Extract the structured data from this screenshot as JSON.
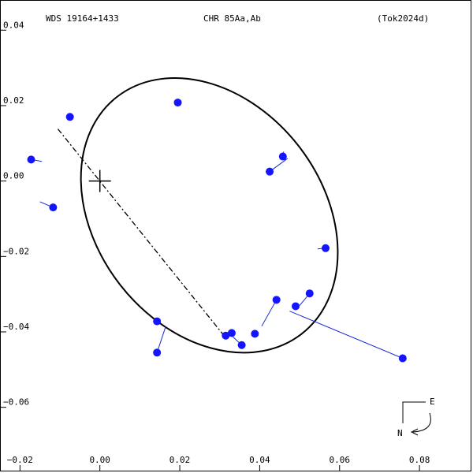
{
  "header": {
    "left": "WDS 19164+1433",
    "center": "CHR  85Aa,Ab",
    "right": "(Tok2024d)"
  },
  "orientation": {
    "east_label": "E",
    "north_label": "N"
  },
  "colors": {
    "points": "#1414ff",
    "residuals": "#1a2bd6",
    "orbit": "#000000",
    "line_of_nodes": "#000000"
  },
  "chart_data": {
    "type": "scatter",
    "xlim": [
      -0.025,
      0.093
    ],
    "ylim": [
      -0.077,
      0.048
    ],
    "x_ticks": [
      -0.02,
      0.0,
      0.02,
      0.04,
      0.06,
      0.08
    ],
    "x_tick_labels": [
      "−0.02",
      "0.00",
      "0.02",
      "0.04",
      "0.06",
      "0.08"
    ],
    "y_ticks": [
      0.04,
      0.02,
      0.0,
      -0.02,
      -0.04,
      -0.06
    ],
    "y_tick_labels": [
      "0.04",
      "0.02",
      "0.00",
      "−0.02",
      "−0.04",
      "−0.06"
    ],
    "primary_star": [
      0.0,
      0.0
    ],
    "orbit_ellipse": {
      "center": [
        0.0274,
        -0.0091
      ],
      "semi_major": 0.0376,
      "semi_minor": 0.0283,
      "rotation_deg": 52
    },
    "line_of_nodes": [
      [
        -0.0105,
        0.0138
      ],
      [
        0.031,
        -0.0409
      ]
    ],
    "points": [
      {
        "obs": [
          -0.0172,
          0.0057
        ],
        "fit": [
          -0.0145,
          0.0052
        ]
      },
      {
        "obs": [
          -0.0117,
          -0.007
        ],
        "fit": [
          -0.015,
          -0.0055
        ]
      },
      {
        "obs": [
          -0.0075,
          0.017
        ],
        "fit": [
          -0.008,
          0.0165
        ]
      },
      {
        "obs": [
          0.0195,
          0.0208
        ],
        "fit": [
          0.0195,
          0.021
        ]
      },
      {
        "obs": [
          0.0458,
          0.0065
        ],
        "fit": [
          0.046,
          0.0078
        ]
      },
      {
        "obs": [
          0.0425,
          0.0025
        ],
        "fit": [
          0.047,
          0.006
        ]
      },
      {
        "obs": [
          0.0565,
          -0.0178
        ],
        "fit": [
          0.0545,
          -0.018
        ]
      },
      {
        "obs": [
          0.0525,
          -0.0298
        ],
        "fit": [
          0.05,
          -0.033
        ]
      },
      {
        "obs": [
          0.049,
          -0.0332
        ],
        "fit": [
          0.0485,
          -0.034
        ]
      },
      {
        "obs": [
          0.0442,
          -0.0315
        ],
        "fit": [
          0.0405,
          -0.0385
        ]
      },
      {
        "obs": [
          0.0388,
          -0.0405
        ],
        "fit": [
          0.038,
          -0.04
        ]
      },
      {
        "obs": [
          0.0758,
          -0.047
        ],
        "fit": [
          0.0475,
          -0.0345
        ]
      },
      {
        "obs": [
          0.033,
          -0.0403
        ],
        "fit": [
          0.0325,
          -0.0408
        ]
      },
      {
        "obs": [
          0.0315,
          -0.041
        ],
        "fit": [
          0.031,
          -0.0412
        ]
      },
      {
        "obs": [
          0.0355,
          -0.0435
        ],
        "fit": [
          0.0325,
          -0.0405
        ]
      },
      {
        "obs": [
          0.0143,
          -0.0372
        ],
        "fit": [
          0.015,
          -0.0375
        ]
      },
      {
        "obs": [
          0.0143,
          -0.0455
        ],
        "fit": [
          0.0165,
          -0.0385
        ]
      }
    ]
  }
}
